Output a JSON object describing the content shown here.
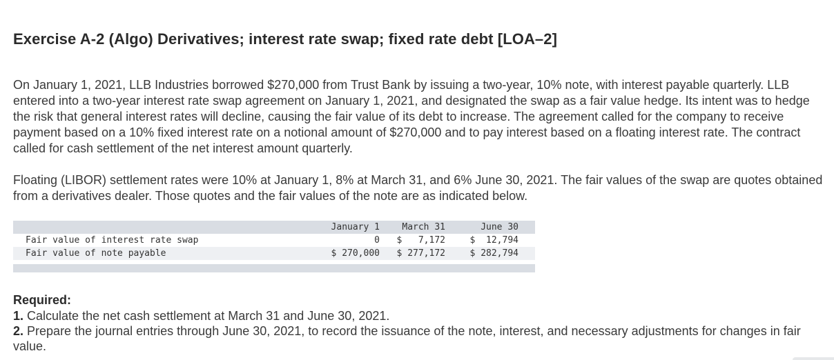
{
  "title": "Exercise A-2 (Algo) Derivatives; interest rate swap; fixed rate debt [LOA–2]",
  "paragraphs": {
    "p1": "On January 1, 2021, LLB Industries borrowed $270,000 from Trust Bank by issuing a two-year, 10% note, with interest payable quarterly. LLB entered into a two-year interest rate swap agreement on January 1, 2021, and designated the swap as a fair value hedge. Its intent was to hedge the risk that general interest rates will decline, causing the fair value of its debt to increase. The agreement called for the company to receive payment based on a 10% fixed interest rate on a notional amount of $270,000 and to pay interest based on a floating interest rate. The contract called for cash settlement of the net interest amount quarterly.",
    "p2": "Floating (LIBOR) settlement rates were 10% at January 1, 8% at March 31, and 6% June 30, 2021. The fair values of the swap are quotes obtained from a derivatives dealer. Those quotes and the fair values of the note are as indicated below."
  },
  "table": {
    "headers": [
      "January 1",
      "March 31",
      "June 30"
    ],
    "rows": [
      {
        "label": "Fair value of interest rate swap",
        "values": [
          "0",
          "$   7,172",
          "$  12,794"
        ]
      },
      {
        "label": "Fair value of note payable",
        "values": [
          "$ 270,000",
          "$ 277,172",
          "$ 282,794"
        ]
      }
    ]
  },
  "required": {
    "heading": "Required:",
    "items": [
      {
        "num": "1.",
        "text": "Calculate the net cash settlement at March 31 and June 30, 2021."
      },
      {
        "num": "2.",
        "text": "Prepare the journal entries through June 30, 2021, to record the issuance of the note, interest, and necessary adjustments for changes in fair value."
      }
    ]
  }
}
